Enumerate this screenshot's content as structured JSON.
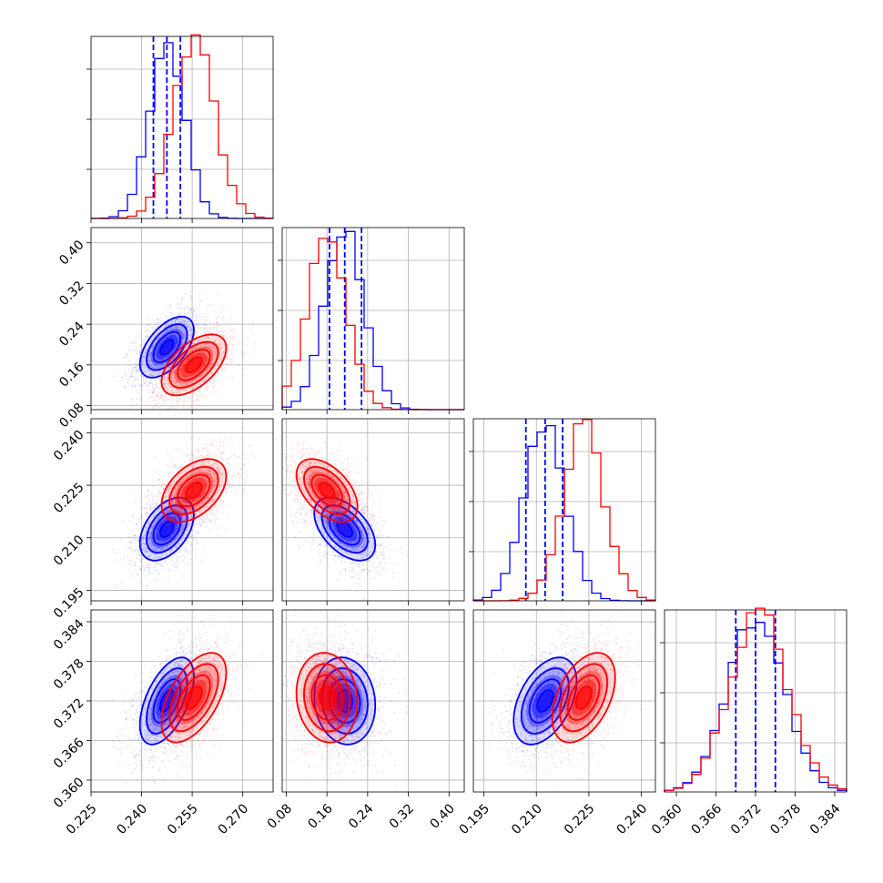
{
  "chart_data": {
    "type": "corner",
    "parameters": 4,
    "grid": true,
    "colors": {
      "blue": "#0000ff",
      "red": "#ff0000"
    },
    "axes": [
      {
        "index": 0,
        "range": [
          0.225,
          0.279
        ],
        "ticks": [
          0.225,
          0.24,
          0.255,
          0.27
        ],
        "tick_labels": [
          "0.225",
          "0.240",
          "0.255",
          "0.270"
        ]
      },
      {
        "index": 1,
        "range": [
          0.072,
          0.43
        ],
        "ticks": [
          0.08,
          0.16,
          0.24,
          0.32,
          0.4
        ],
        "tick_labels": [
          "0.08",
          "0.16",
          "0.24",
          "0.32",
          "0.40"
        ]
      },
      {
        "index": 2,
        "range": [
          0.192,
          0.244
        ],
        "ticks": [
          0.195,
          0.21,
          0.225,
          0.24
        ],
        "tick_labels": [
          "0.195",
          "0.210",
          "0.225",
          "0.240"
        ]
      },
      {
        "index": 3,
        "range": [
          0.3582,
          0.3858
        ],
        "ticks": [
          0.36,
          0.366,
          0.372,
          0.378,
          0.384
        ],
        "tick_labels": [
          "0.360",
          "0.366",
          "0.372",
          "0.378",
          "0.384"
        ]
      }
    ],
    "series": [
      {
        "color": "blue",
        "mean": [
          0.2475,
          0.195,
          0.2125,
          0.372
        ],
        "sd": [
          0.004,
          0.03,
          0.0045,
          0.0033
        ],
        "quantile_lines": [
          [
            0.2435,
            0.2475,
            0.2515
          ],
          [
            0.165,
            0.195,
            0.228
          ],
          [
            0.207,
            0.2125,
            0.2175
          ],
          [
            0.369,
            0.372,
            0.375
          ]
        ]
      },
      {
        "color": "red",
        "mean": [
          0.2555,
          0.16,
          0.2235,
          0.3725
        ],
        "sd": [
          0.0048,
          0.03,
          0.0045,
          0.0034
        ],
        "quantile_lines": []
      }
    ],
    "correlations": {
      "0-1": 0.55,
      "0-2": 0.45,
      "0-3": 0.55,
      "1-2": -0.5,
      "1-3": -0.1,
      "2-3": 0.45
    }
  }
}
